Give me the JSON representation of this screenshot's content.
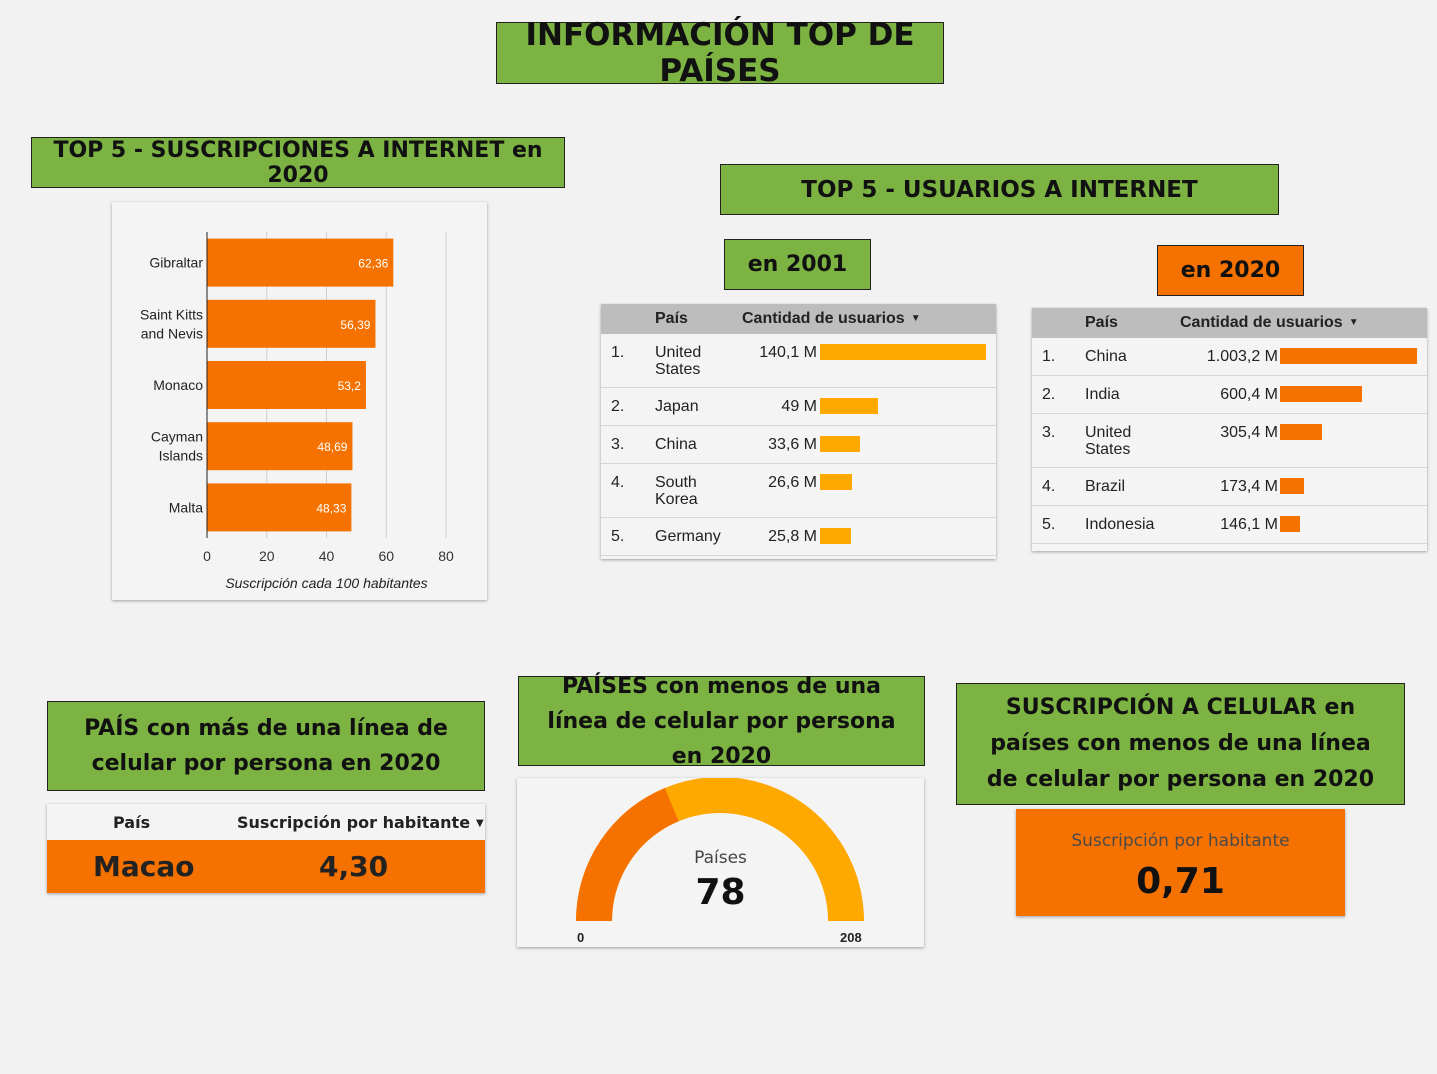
{
  "page_title": "INFORMACIÓN TOP DE PAÍSES",
  "colors": {
    "green": "#7cb342",
    "orange": "#f57200",
    "amber": "#ffa800"
  },
  "subscriptions_title": "TOP 5 - SUSCRIPCIONES A INTERNET en 2020",
  "users_title": "TOP 5 - USUARIOS A INTERNET",
  "year_2001_label": "en 2001",
  "year_2020_label": "en 2020",
  "table_headers": {
    "country": "País",
    "users": "Cantidad de usuarios"
  },
  "users_2001": [
    {
      "rank": "1.",
      "country": "United States",
      "value_label": "140,1 M",
      "value": 140.1
    },
    {
      "rank": "2.",
      "country": "Japan",
      "value_label": "49 M",
      "value": 49
    },
    {
      "rank": "3.",
      "country": "China",
      "value_label": "33,6 M",
      "value": 33.6
    },
    {
      "rank": "4.",
      "country": "South Korea",
      "value_label": "26,6 M",
      "value": 26.6
    },
    {
      "rank": "5.",
      "country": "Germany",
      "value_label": "25,8 M",
      "value": 25.8
    }
  ],
  "users_2020": [
    {
      "rank": "1.",
      "country": "China",
      "value_label": "1.003,2 M",
      "value": 1003.2
    },
    {
      "rank": "2.",
      "country": "India",
      "value_label": "600,4 M",
      "value": 600.4
    },
    {
      "rank": "3.",
      "country": "United States",
      "value_label": "305,4 M",
      "value": 305.4
    },
    {
      "rank": "4.",
      "country": "Brazil",
      "value_label": "173,4 M",
      "value": 173.4
    },
    {
      "rank": "5.",
      "country": "Indonesia",
      "value_label": "146,1 M",
      "value": 146.1
    }
  ],
  "more_than_one_title": "PAÍS con más de una línea de celular por persona en 2020",
  "more_than_one_headers": {
    "country": "País",
    "metric": "Suscripción por habitante"
  },
  "more_than_one_row": {
    "country": "Macao",
    "value": "4,30"
  },
  "less_than_one_title": "PAÍSES con menos de una línea de celular por persona en 2020",
  "gauge": {
    "label": "Países",
    "value": 78,
    "value_label": "78",
    "min": 0,
    "max": 208,
    "min_label": "0",
    "max_label": "208"
  },
  "cell_sub_title": "SUSCRIPCIÓN A CELULAR en países con menos de una línea de celular por persona en 2020",
  "scorecard": {
    "label": "Suscripción por habitante",
    "value": "0,71"
  },
  "chart_data": {
    "type": "bar",
    "orientation": "horizontal",
    "categories": [
      "Gibraltar",
      "Saint Kitts and Nevis",
      "Monaco",
      "Cayman Islands",
      "Malta"
    ],
    "category_lines": [
      [
        "Gibraltar"
      ],
      [
        "Saint Kitts",
        "and Nevis"
      ],
      [
        "Monaco"
      ],
      [
        "Cayman",
        "Islands"
      ],
      [
        "Malta"
      ]
    ],
    "values": [
      62.36,
      56.39,
      53.2,
      48.69,
      48.33
    ],
    "value_labels": [
      "62,36",
      "56,39",
      "53,2",
      "48,69",
      "48,33"
    ],
    "xlabel": "Suscripción cada 100 habitantes",
    "ylabel": "",
    "xlim": [
      0,
      80
    ],
    "ticks": [
      0,
      20,
      40,
      60,
      80
    ],
    "grid": true
  }
}
